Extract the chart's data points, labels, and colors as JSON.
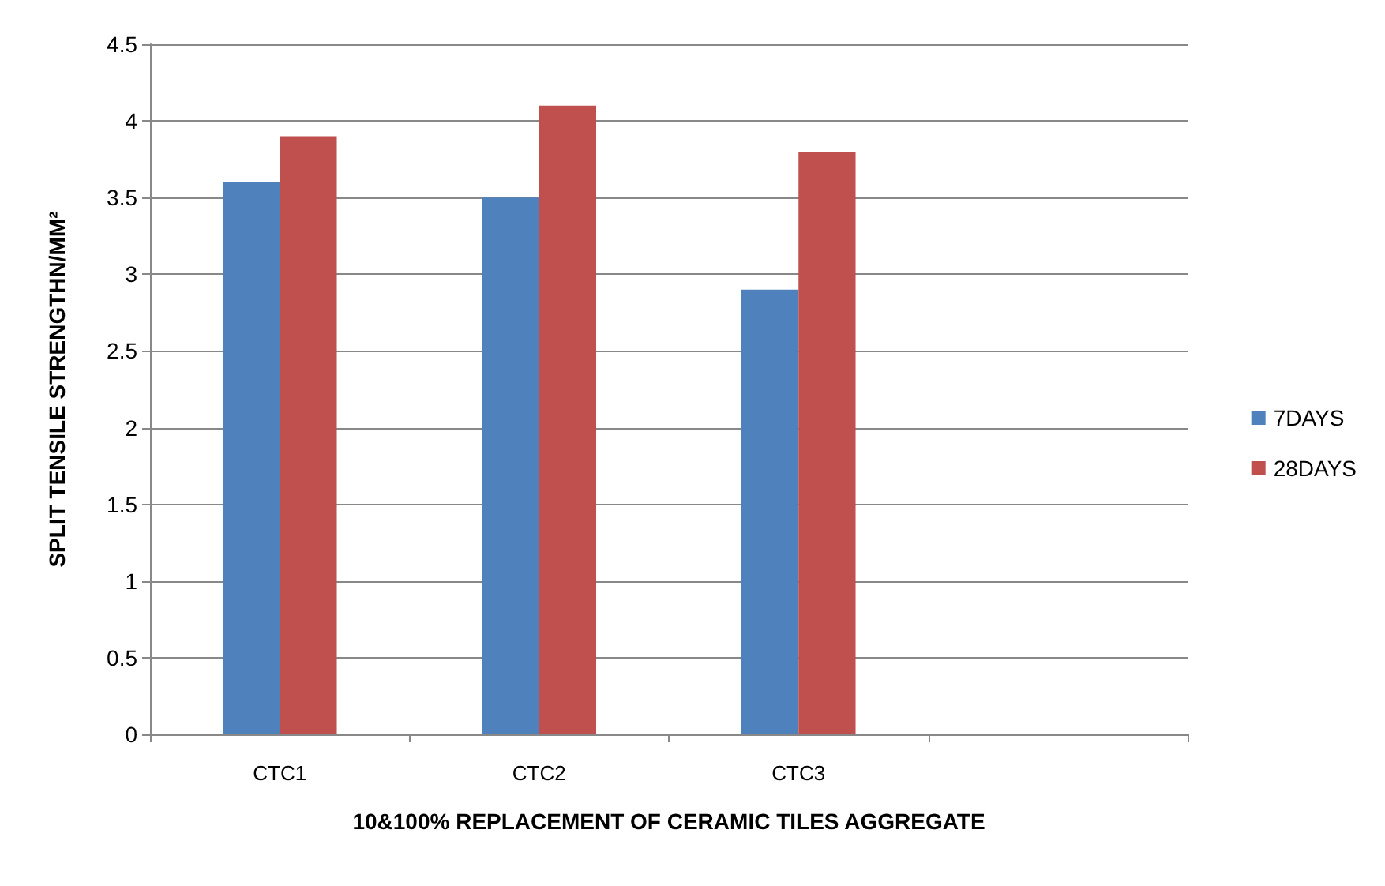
{
  "chart_data": {
    "type": "bar",
    "xlabel": "10&100% REPLACEMENT OF CERAMIC TILES AGGREGATE",
    "ylabel": "SPLIT TENSILE STRENGTHN/MM²",
    "categories": [
      "CTC1",
      "CTC2",
      "CTC3",
      null
    ],
    "series": [
      {
        "name": "7DAYS",
        "color": "#4f81bd",
        "values": [
          3.6,
          3.5,
          2.9,
          null
        ]
      },
      {
        "name": "28DAYS",
        "color": "#c0504d",
        "values": [
          3.9,
          4.1,
          3.8,
          null
        ]
      }
    ],
    "ylim": [
      0,
      4.5
    ],
    "yticks": [
      0,
      0.5,
      1,
      1.5,
      2,
      2.5,
      3,
      3.5,
      4,
      4.5
    ],
    "grid": "y",
    "legend": "right"
  }
}
